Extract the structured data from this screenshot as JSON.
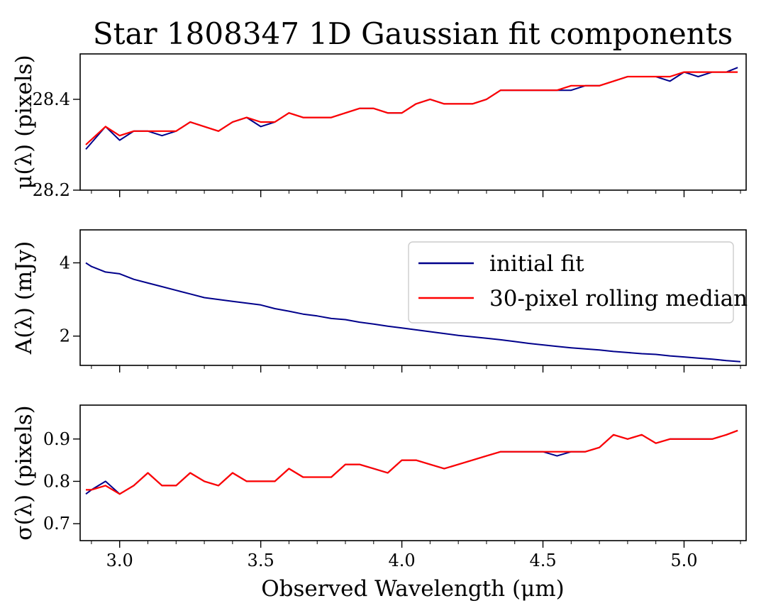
{
  "chart_data": {
    "type": "line",
    "title": "Star 1808347 1D Gaussian fit components",
    "xlabel": "Observed Wavelength (μm)",
    "xlim": [
      2.86,
      5.22
    ],
    "xticks": [
      3.0,
      3.5,
      4.0,
      4.5,
      5.0
    ],
    "xtick_labels": [
      "3.0",
      "3.5",
      "4.0",
      "4.5",
      "5.0"
    ],
    "legend": {
      "placement": "top-right of middle panel",
      "entries": [
        {
          "label": "initial fit",
          "color": "#00008b"
        },
        {
          "label": "30-pixel rolling median",
          "color": "#ff0000"
        }
      ]
    },
    "panels": [
      {
        "id": "mu",
        "ylabel": "μ(λ) (pixels)",
        "ylim": [
          28.2,
          28.5
        ],
        "yticks": [
          28.2,
          28.4
        ],
        "ytick_labels": [
          "28.2",
          "28.4"
        ],
        "series": [
          {
            "name": "initial fit",
            "x": [
              2.88,
              2.95,
              3.0,
              3.05,
              3.1,
              3.15,
              3.2,
              3.25,
              3.3,
              3.35,
              3.4,
              3.45,
              3.5,
              3.55,
              3.6,
              3.65,
              3.7,
              3.75,
              3.8,
              3.85,
              3.9,
              3.95,
              4.0,
              4.05,
              4.1,
              4.15,
              4.2,
              4.25,
              4.3,
              4.35,
              4.4,
              4.45,
              4.5,
              4.55,
              4.6,
              4.65,
              4.7,
              4.75,
              4.8,
              4.85,
              4.9,
              4.95,
              5.0,
              5.05,
              5.1,
              5.15,
              5.19
            ],
            "y": [
              28.29,
              28.34,
              28.31,
              28.33,
              28.33,
              28.32,
              28.33,
              28.35,
              28.34,
              28.33,
              28.35,
              28.36,
              28.34,
              28.35,
              28.37,
              28.36,
              28.36,
              28.36,
              28.37,
              28.38,
              28.38,
              28.37,
              28.37,
              28.39,
              28.4,
              28.39,
              28.39,
              28.39,
              28.4,
              28.42,
              28.42,
              28.42,
              28.42,
              28.42,
              28.42,
              28.43,
              28.43,
              28.44,
              28.45,
              28.45,
              28.45,
              28.44,
              28.46,
              28.45,
              28.46,
              28.46,
              28.47
            ]
          },
          {
            "name": "30-pixel rolling median",
            "x": [
              2.88,
              2.95,
              3.0,
              3.05,
              3.1,
              3.15,
              3.2,
              3.25,
              3.3,
              3.35,
              3.4,
              3.45,
              3.5,
              3.55,
              3.6,
              3.65,
              3.7,
              3.75,
              3.8,
              3.85,
              3.9,
              3.95,
              4.0,
              4.05,
              4.1,
              4.15,
              4.2,
              4.25,
              4.3,
              4.35,
              4.4,
              4.45,
              4.5,
              4.55,
              4.6,
              4.65,
              4.7,
              4.75,
              4.8,
              4.85,
              4.9,
              4.95,
              5.0,
              5.05,
              5.1,
              5.15,
              5.19
            ],
            "y": [
              28.3,
              28.34,
              28.32,
              28.33,
              28.33,
              28.33,
              28.33,
              28.35,
              28.34,
              28.33,
              28.35,
              28.36,
              28.35,
              28.35,
              28.37,
              28.36,
              28.36,
              28.36,
              28.37,
              28.38,
              28.38,
              28.37,
              28.37,
              28.39,
              28.4,
              28.39,
              28.39,
              28.39,
              28.4,
              28.42,
              28.42,
              28.42,
              28.42,
              28.42,
              28.43,
              28.43,
              28.43,
              28.44,
              28.45,
              28.45,
              28.45,
              28.45,
              28.46,
              28.46,
              28.46,
              28.46,
              28.46
            ]
          }
        ]
      },
      {
        "id": "amp",
        "ylabel": "A(λ) (mJy)",
        "ylim": [
          1.2,
          4.9
        ],
        "yticks": [
          2,
          4
        ],
        "ytick_labels": [
          "2",
          "4"
        ],
        "series": [
          {
            "name": "initial fit",
            "x": [
              2.88,
              2.9,
              2.95,
              3.0,
              3.05,
              3.1,
              3.15,
              3.2,
              3.25,
              3.3,
              3.35,
              3.4,
              3.45,
              3.5,
              3.55,
              3.6,
              3.65,
              3.7,
              3.75,
              3.8,
              3.85,
              3.9,
              3.95,
              4.0,
              4.05,
              4.1,
              4.15,
              4.2,
              4.25,
              4.3,
              4.35,
              4.4,
              4.45,
              4.5,
              4.55,
              4.6,
              4.65,
              4.7,
              4.75,
              4.8,
              4.85,
              4.9,
              4.95,
              5.0,
              5.05,
              5.1,
              5.15,
              5.2
            ],
            "y": [
              4.0,
              3.9,
              3.75,
              3.7,
              3.55,
              3.45,
              3.35,
              3.25,
              3.15,
              3.05,
              3.0,
              2.95,
              2.9,
              2.85,
              2.75,
              2.68,
              2.6,
              2.55,
              2.48,
              2.45,
              2.38,
              2.33,
              2.27,
              2.22,
              2.17,
              2.12,
              2.07,
              2.02,
              1.98,
              1.94,
              1.9,
              1.85,
              1.8,
              1.76,
              1.72,
              1.68,
              1.65,
              1.62,
              1.58,
              1.55,
              1.52,
              1.5,
              1.46,
              1.43,
              1.4,
              1.37,
              1.33,
              1.3
            ]
          }
        ]
      },
      {
        "id": "sigma",
        "ylabel": "σ(λ) (pixels)",
        "ylim": [
          0.66,
          0.98
        ],
        "yticks": [
          0.7,
          0.8,
          0.9
        ],
        "ytick_labels": [
          "0.7",
          "0.8",
          "0.9"
        ],
        "series": [
          {
            "name": "initial fit",
            "x": [
              2.88,
              2.9,
              2.95,
              3.0,
              3.05,
              3.1,
              3.15,
              3.2,
              3.25,
              3.3,
              3.35,
              3.4,
              3.45,
              3.5,
              3.55,
              3.6,
              3.65,
              3.7,
              3.75,
              3.8,
              3.85,
              3.9,
              3.95,
              4.0,
              4.05,
              4.1,
              4.15,
              4.2,
              4.25,
              4.3,
              4.35,
              4.4,
              4.45,
              4.5,
              4.55,
              4.6,
              4.65,
              4.7,
              4.75,
              4.8,
              4.85,
              4.9,
              4.95,
              5.0,
              5.05,
              5.1,
              5.15,
              5.19
            ],
            "y": [
              0.77,
              0.78,
              0.8,
              0.77,
              0.79,
              0.82,
              0.79,
              0.79,
              0.82,
              0.8,
              0.79,
              0.82,
              0.8,
              0.8,
              0.8,
              0.83,
              0.81,
              0.81,
              0.81,
              0.84,
              0.84,
              0.83,
              0.82,
              0.85,
              0.85,
              0.84,
              0.83,
              0.84,
              0.85,
              0.86,
              0.87,
              0.87,
              0.87,
              0.87,
              0.86,
              0.87,
              0.87,
              0.88,
              0.91,
              0.9,
              0.91,
              0.89,
              0.9,
              0.9,
              0.9,
              0.9,
              0.91,
              0.92
            ]
          },
          {
            "name": "30-pixel rolling median",
            "x": [
              2.88,
              2.9,
              2.95,
              3.0,
              3.05,
              3.1,
              3.15,
              3.2,
              3.25,
              3.3,
              3.35,
              3.4,
              3.45,
              3.5,
              3.55,
              3.6,
              3.65,
              3.7,
              3.75,
              3.8,
              3.85,
              3.9,
              3.95,
              4.0,
              4.05,
              4.1,
              4.15,
              4.2,
              4.25,
              4.3,
              4.35,
              4.4,
              4.45,
              4.5,
              4.55,
              4.6,
              4.65,
              4.7,
              4.75,
              4.8,
              4.85,
              4.9,
              4.95,
              5.0,
              5.05,
              5.1,
              5.15,
              5.19
            ],
            "y": [
              0.78,
              0.78,
              0.79,
              0.77,
              0.79,
              0.82,
              0.79,
              0.79,
              0.82,
              0.8,
              0.79,
              0.82,
              0.8,
              0.8,
              0.8,
              0.83,
              0.81,
              0.81,
              0.81,
              0.84,
              0.84,
              0.83,
              0.82,
              0.85,
              0.85,
              0.84,
              0.83,
              0.84,
              0.85,
              0.86,
              0.87,
              0.87,
              0.87,
              0.87,
              0.87,
              0.87,
              0.87,
              0.88,
              0.91,
              0.9,
              0.91,
              0.89,
              0.9,
              0.9,
              0.9,
              0.9,
              0.91,
              0.92
            ]
          }
        ]
      }
    ]
  }
}
